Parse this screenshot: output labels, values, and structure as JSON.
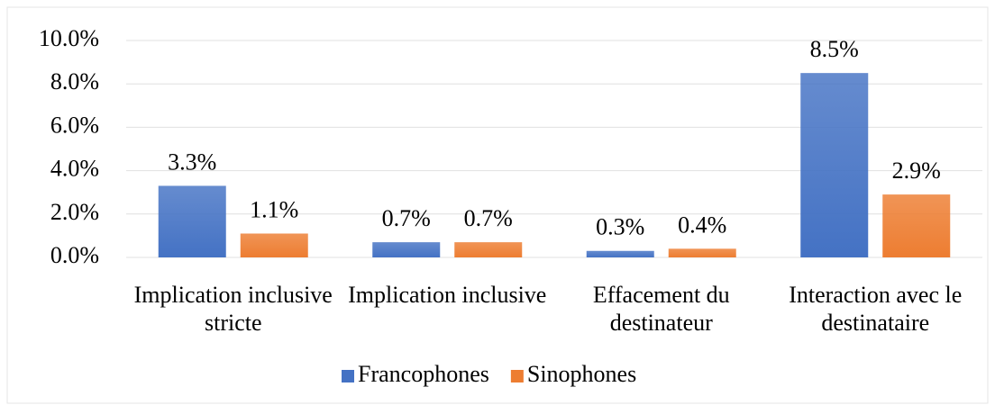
{
  "chart_data": {
    "type": "bar",
    "categories": [
      "Implication inclusive stricte",
      "Implication inclusive",
      "Effacement du destinateur",
      "Interaction avec le destinataire"
    ],
    "series": [
      {
        "name": "Francophones",
        "color": "#4472c4",
        "values": [
          3.3,
          0.7,
          0.3,
          8.5
        ],
        "value_labels": [
          "3.3%",
          "0.7%",
          "0.3%",
          "8.5%"
        ]
      },
      {
        "name": "Sinophones",
        "color": "#ed7d31",
        "values": [
          1.1,
          0.7,
          0.4,
          2.9
        ],
        "value_labels": [
          "1.1%",
          "0.7%",
          "0.4%",
          "2.9%"
        ]
      }
    ],
    "ylim": [
      0,
      10
    ],
    "yticks": [
      {
        "value": 0,
        "label": "0.0%"
      },
      {
        "value": 2,
        "label": "2.0%"
      },
      {
        "value": 4,
        "label": "4.0%"
      },
      {
        "value": 6,
        "label": "6.0%"
      },
      {
        "value": 8,
        "label": "8.0%"
      },
      {
        "value": 10,
        "label": "10.0%"
      }
    ],
    "grid": true,
    "legend": "bottom"
  }
}
